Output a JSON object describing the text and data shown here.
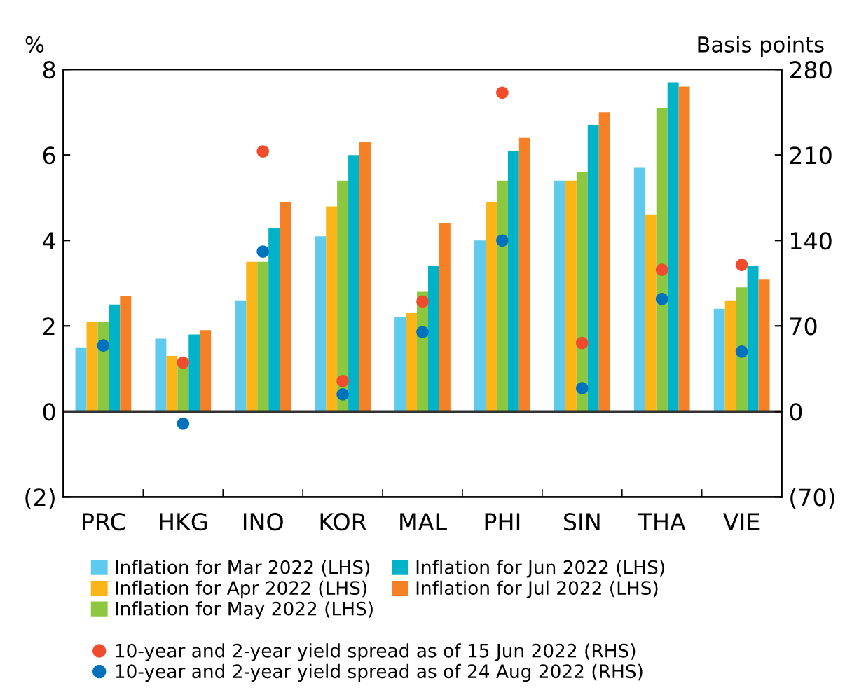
{
  "chart_data": {
    "type": "bar",
    "ylabel": "%",
    "y2label": "Basis points",
    "categories": [
      "PRC",
      "HKG",
      "INO",
      "KOR",
      "MAL",
      "PHI",
      "SIN",
      "THA",
      "VIE"
    ],
    "series": [
      {
        "name": "Inflation for Mar 2022 (LHS)",
        "color": "#5ecbee",
        "values": [
          1.5,
          1.7,
          2.6,
          4.1,
          2.2,
          4.0,
          5.4,
          5.7,
          2.4
        ]
      },
      {
        "name": "Inflation for Apr 2022 (LHS)",
        "color": "#fbb519",
        "values": [
          2.1,
          1.3,
          3.5,
          4.8,
          2.3,
          4.9,
          5.4,
          4.6,
          2.6
        ]
      },
      {
        "name": "Inflation for May 2022 (LHS)",
        "color": "#8dc63f",
        "values": [
          2.1,
          1.1,
          3.5,
          5.4,
          2.8,
          5.4,
          5.6,
          7.1,
          2.9
        ]
      },
      {
        "name": "Inflation for Jun 2022 (LHS)",
        "color": "#00b3c8",
        "values": [
          2.5,
          1.8,
          4.3,
          6.0,
          3.4,
          6.1,
          6.7,
          7.7,
          3.4
        ]
      },
      {
        "name": "Inflation for Jul 2022 (LHS)",
        "color": "#f58025",
        "values": [
          2.7,
          1.9,
          4.9,
          6.3,
          4.4,
          6.4,
          7.0,
          7.6,
          3.1
        ]
      },
      {
        "name": "10-year and 2-year yield spread as of 15 Jun 2022 (RHS)",
        "type": "scatter",
        "axis": "y2",
        "color": "#ee4c2c",
        "values": [
          null,
          40,
          213,
          25,
          90,
          261,
          56,
          116,
          120
        ]
      },
      {
        "name": "10-year and 2-year yield spread as of 24 Aug 2022 (RHS)",
        "type": "scatter",
        "axis": "y2",
        "color": "#0072bc",
        "values": [
          54,
          -10,
          131,
          14,
          65,
          140,
          19,
          92,
          49
        ]
      }
    ],
    "ylim": [
      -2,
      8
    ],
    "yticks": [
      {
        "value": -2,
        "label": "(2)"
      },
      0,
      2,
      4,
      6,
      8
    ],
    "y2lim": [
      -70,
      280
    ],
    "y2ticks": [
      {
        "value": -70,
        "label": "(70)"
      },
      0,
      70,
      140,
      210,
      280
    ],
    "ref_lines": [
      {
        "axis": "y",
        "value": 0,
        "color": "#333333",
        "line_style": "solid"
      }
    ],
    "marker": "circle",
    "legend": "bottom"
  }
}
